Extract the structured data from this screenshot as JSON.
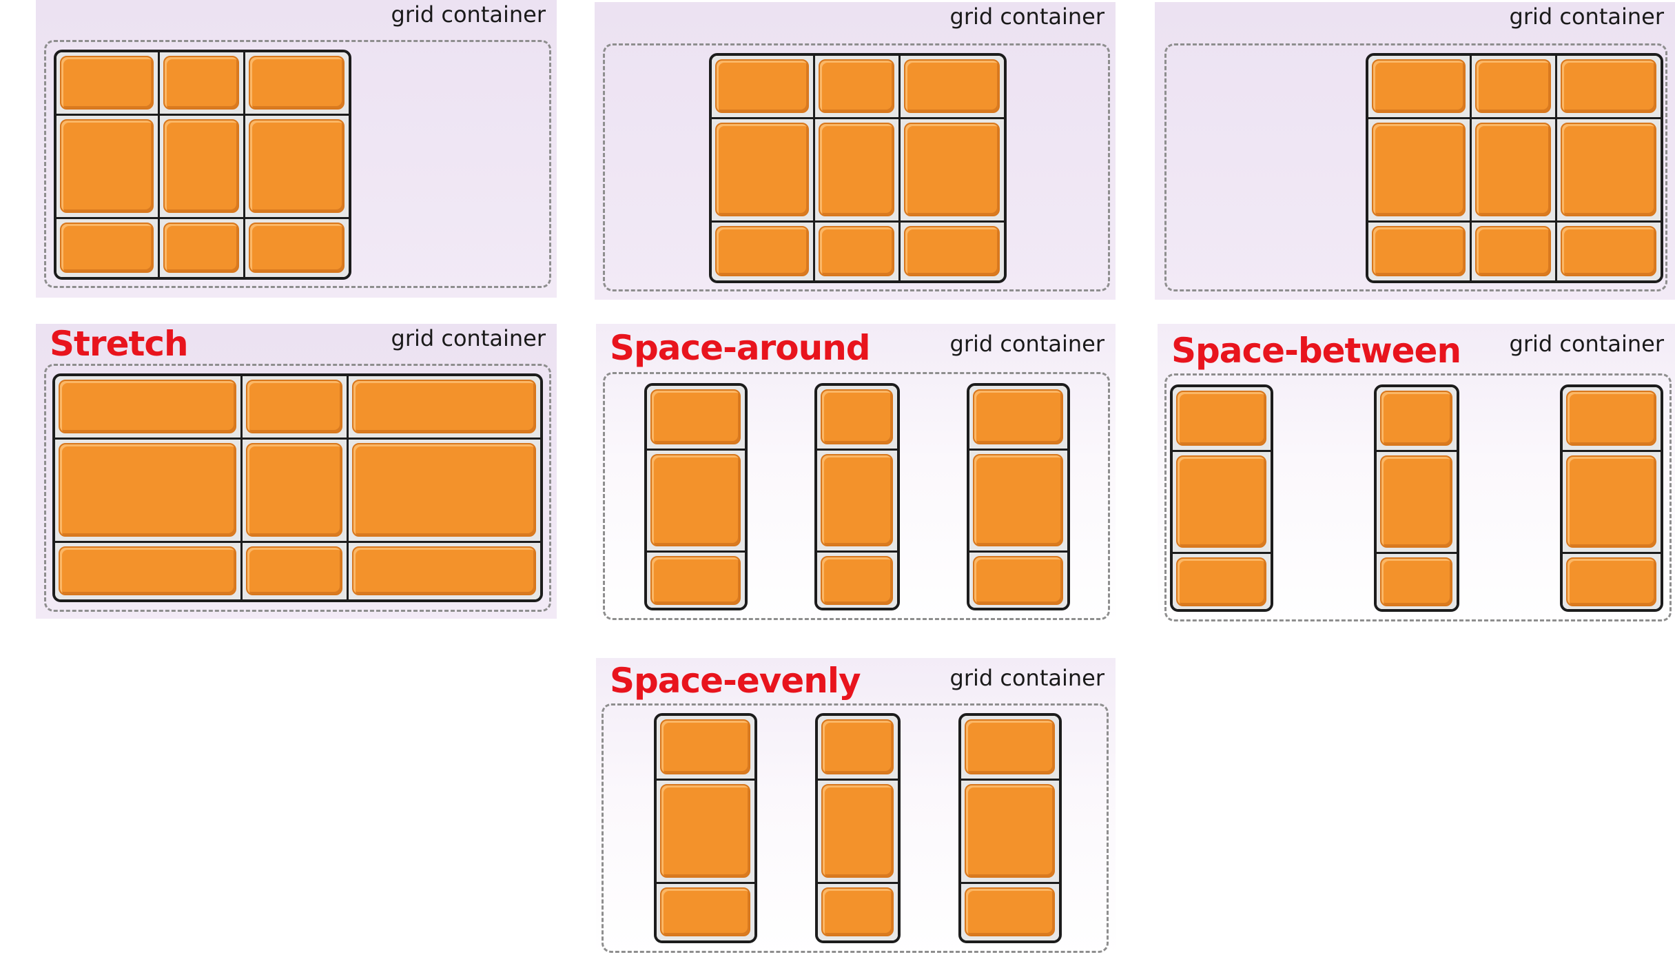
{
  "container_label": "grid container",
  "panels": [
    {
      "id": "start",
      "title": ""
    },
    {
      "id": "center",
      "title": ""
    },
    {
      "id": "end",
      "title": ""
    },
    {
      "id": "stretch",
      "title": "Stretch"
    },
    {
      "id": "space-around",
      "title": "Space-around"
    },
    {
      "id": "space-between",
      "title": "Space-between"
    },
    {
      "id": "space-evenly",
      "title": "Space-evenly"
    }
  ],
  "colors": {
    "item_fill": "#f3922b",
    "title_red": "#e8141d",
    "panel_bg": "#ece2f2",
    "dashed_border": "#8e8e8e",
    "grid_line": "#1c1c1c"
  }
}
